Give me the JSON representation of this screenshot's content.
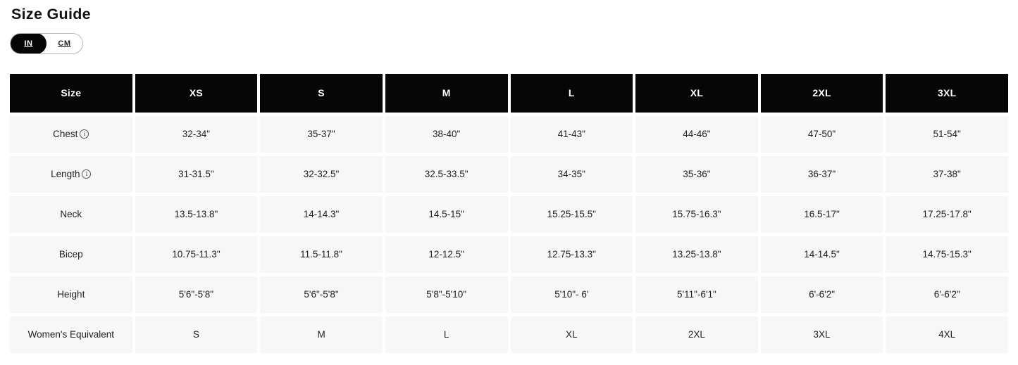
{
  "page": {
    "title": "Size Guide"
  },
  "unit_toggle": {
    "options": [
      {
        "label": "IN",
        "active": true
      },
      {
        "label": "CM",
        "active": false
      }
    ]
  },
  "table": {
    "headers": [
      "Size",
      "XS",
      "S",
      "M",
      "L",
      "XL",
      "2XL",
      "3XL"
    ],
    "rows": [
      {
        "label": "Chest",
        "has_info_icon": true,
        "values": [
          "32-34\"",
          "35-37\"",
          "38-40\"",
          "41-43\"",
          "44-46\"",
          "47-50\"",
          "51-54\""
        ]
      },
      {
        "label": "Length",
        "has_info_icon": true,
        "values": [
          "31-31.5\"",
          "32-32.5\"",
          "32.5-33.5\"",
          "34-35\"",
          "35-36\"",
          "36-37\"",
          "37-38\""
        ]
      },
      {
        "label": "Neck",
        "has_info_icon": false,
        "values": [
          "13.5-13.8\"",
          "14-14.3\"",
          "14.5-15\"",
          "15.25-15.5\"",
          "15.75-16.3\"",
          "16.5-17\"",
          "17.25-17.8\""
        ]
      },
      {
        "label": "Bicep",
        "has_info_icon": false,
        "values": [
          "10.75-11.3\"",
          "11.5-11.8\"",
          "12-12.5\"",
          "12.75-13.3\"",
          "13.25-13.8\"",
          "14-14.5\"",
          "14.75-15.3\""
        ]
      },
      {
        "label": "Height",
        "has_info_icon": false,
        "values": [
          "5'6\"-5'8\"",
          "5'6\"-5'8\"",
          "5'8\"-5'10\"",
          "5'10\"- 6'",
          "5'11\"-6'1\"",
          "6'-6'2\"",
          "6'-6'2\""
        ]
      },
      {
        "label": "Women's Equivalent",
        "has_info_icon": false,
        "values": [
          "S",
          "M",
          "L",
          "XL",
          "2XL",
          "3XL",
          "4XL"
        ]
      }
    ]
  },
  "icons": {
    "info_letter": "i"
  },
  "colors": {
    "header_bg": "#060606",
    "header_text": "#ffffff",
    "cell_bg": "#f7f7f7",
    "cell_text": "#212121"
  }
}
